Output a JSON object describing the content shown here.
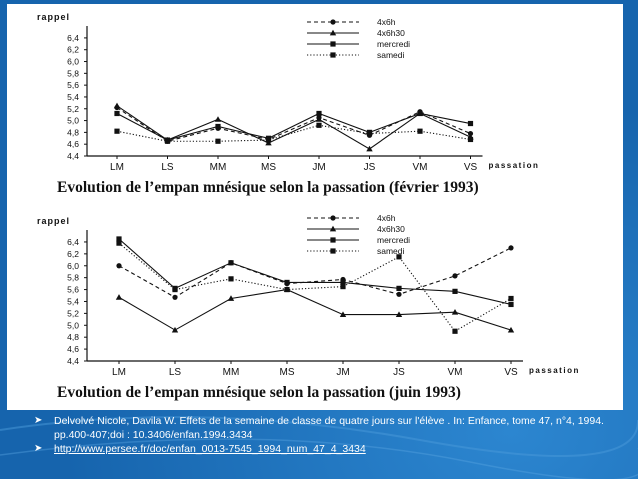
{
  "chart_data": [
    {
      "type": "line",
      "title": "Evolution de l’empan mnésique selon la passation (février 1993)",
      "ylabel": "rappel",
      "xlabel": "passation",
      "categories": [
        "LM",
        "LS",
        "MM",
        "MS",
        "JM",
        "JS",
        "VM",
        "VS"
      ],
      "yticks": [
        "6,4",
        "6,2",
        "6,0",
        "5,8",
        "5,6",
        "5,4",
        "5,2",
        "5,0",
        "4,8",
        "4,6",
        "4,4"
      ],
      "ylim": [
        4.4,
        6.5
      ],
      "legend_position": "top-right",
      "series": [
        {
          "name": "4x6h",
          "style": "dashed",
          "marker": "circle",
          "values": [
            5.22,
            4.65,
            4.87,
            4.68,
            5.05,
            4.75,
            5.15,
            4.78
          ]
        },
        {
          "name": "4x6h30",
          "style": "solid",
          "marker": "triangle",
          "values": [
            5.25,
            4.67,
            5.02,
            4.62,
            5.02,
            4.52,
            5.12,
            4.72
          ]
        },
        {
          "name": "mercredi",
          "style": "solid",
          "marker": "square",
          "values": [
            5.12,
            4.67,
            4.9,
            4.7,
            5.12,
            4.8,
            5.12,
            4.95
          ]
        },
        {
          "name": "samedi",
          "style": "dotted",
          "marker": "square",
          "values": [
            4.82,
            4.65,
            4.65,
            4.67,
            4.92,
            4.78,
            4.82,
            4.68
          ]
        }
      ]
    },
    {
      "type": "line",
      "title": "Evolution de l’empan mnésique selon la passation (juin 1993)",
      "ylabel": "rappel",
      "xlabel": "passation",
      "categories": [
        "LM",
        "LS",
        "MM",
        "MS",
        "JM",
        "JS",
        "VM",
        "VS"
      ],
      "yticks": [
        "6,4",
        "6,2",
        "6,0",
        "5,8",
        "5,6",
        "5,4",
        "5,2",
        "5,0",
        "4,8",
        "4,6",
        "4,4"
      ],
      "ylim": [
        4.4,
        6.5
      ],
      "legend_position": "top-right",
      "series": [
        {
          "name": "4x6h",
          "style": "dashed",
          "marker": "circle",
          "values": [
            6.0,
            5.47,
            6.05,
            5.7,
            5.77,
            5.52,
            5.83,
            6.3
          ]
        },
        {
          "name": "4x6h30",
          "style": "solid",
          "marker": "triangle",
          "values": [
            5.47,
            4.92,
            5.45,
            5.6,
            5.18,
            5.18,
            5.22,
            4.92
          ]
        },
        {
          "name": "mercredi",
          "style": "solid",
          "marker": "square",
          "values": [
            6.45,
            5.62,
            6.05,
            5.72,
            5.72,
            5.62,
            5.57,
            5.35
          ]
        },
        {
          "name": "samedi",
          "style": "dotted",
          "marker": "square",
          "values": [
            6.38,
            5.6,
            5.78,
            5.6,
            5.65,
            6.15,
            4.9,
            5.45
          ]
        }
      ]
    }
  ],
  "references": [
    {
      "text": "Delvolvé Nicole, Davila W. Effets de la semaine de classe de quatre jours sur l'élève . In: Enfance, tome 47, n°4, 1994. pp.400-407;doi : 10.3406/enfan.1994.3434"
    },
    {
      "text": "http://www.persee.fr/doc/enfan_0013-7545_1994_num_47_4_3434"
    }
  ],
  "colors": {
    "background": "#1769b4",
    "figure": "#ffffff",
    "ink": "#111111"
  },
  "icons": {
    "bullet": "arrow-bullet-icon"
  }
}
